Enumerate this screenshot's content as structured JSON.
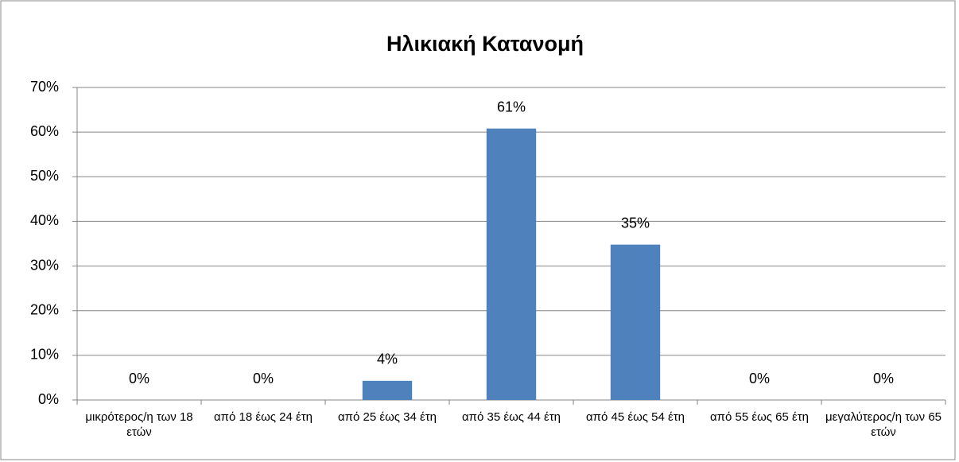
{
  "chart_data": {
    "type": "bar",
    "title": "Ηλικιακή Κατανομή",
    "categories": [
      "μικρότερος/η των 18 ετών",
      "από 18 έως 24 έτη",
      "από 25 έως 34 έτη",
      "από 35 έως 44 έτη",
      "από 45 έως 54 έτη",
      "από 55 έως 65 έτη",
      "μεγαλύτερος/η των 65 ετών"
    ],
    "values": [
      0,
      0,
      4.3,
      60.8,
      34.8,
      0,
      0
    ],
    "value_labels": [
      "0%",
      "0%",
      "4%",
      "61%",
      "35%",
      "0%",
      "0%"
    ],
    "color": "#4f81bd",
    "ylim": [
      0,
      70
    ],
    "yticks": [
      {
        "value": 0,
        "label": "0%"
      },
      {
        "value": 10,
        "label": "10%"
      },
      {
        "value": 20,
        "label": "20%"
      },
      {
        "value": 30,
        "label": "30%"
      },
      {
        "value": 40,
        "label": "40%"
      },
      {
        "value": 50,
        "label": "50%"
      },
      {
        "value": 60,
        "label": "60%"
      },
      {
        "value": 70,
        "label": "70%"
      }
    ],
    "grid": true
  }
}
